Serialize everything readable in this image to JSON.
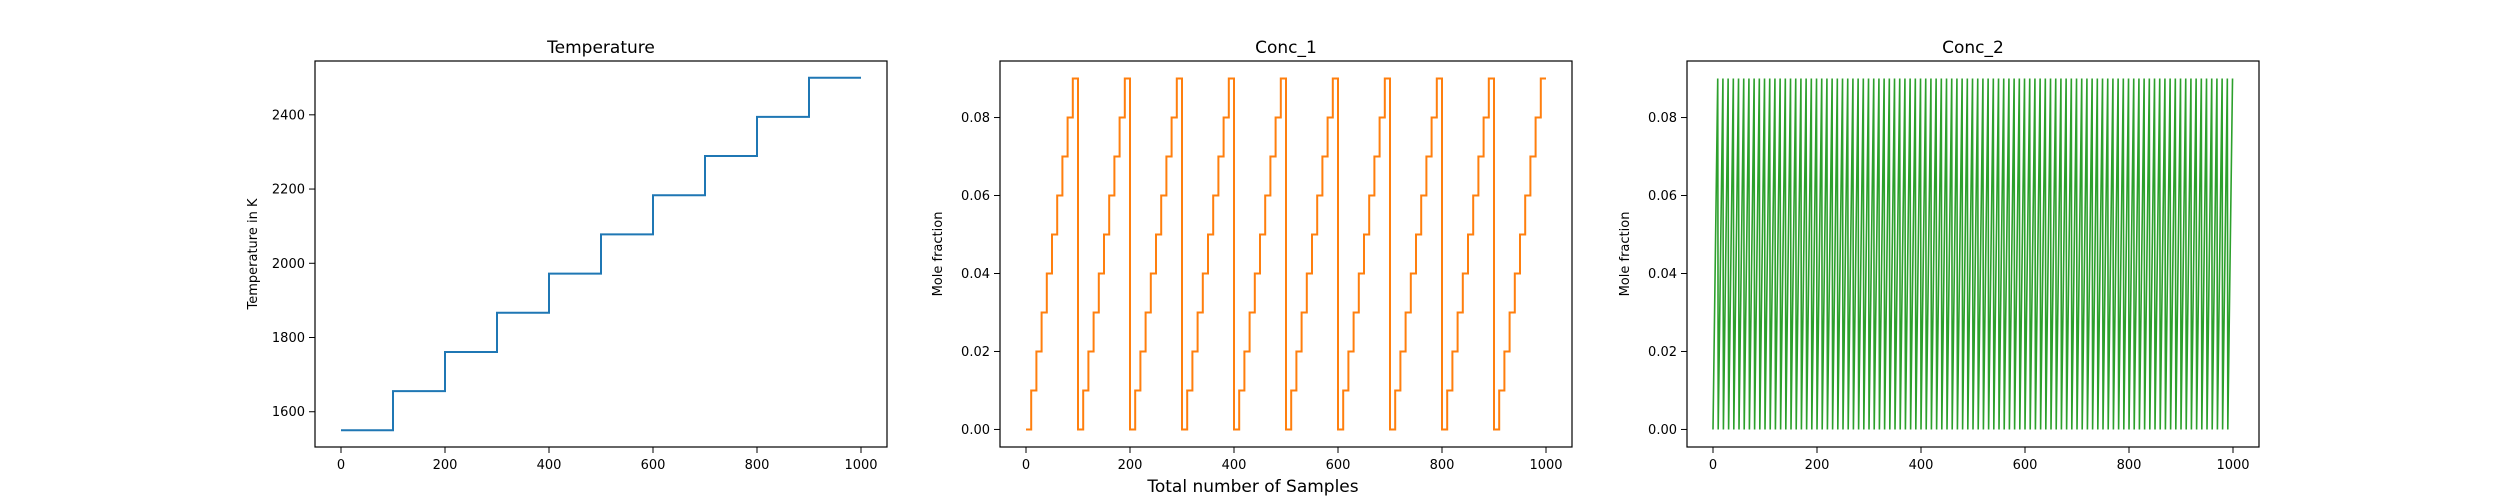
{
  "figure": {
    "xlabel": "Total number of Samples"
  },
  "chart_data": [
    {
      "type": "line",
      "title": "Temperature",
      "xlabel": "",
      "ylabel": "Temperature in K",
      "xlim": [
        -50,
        1050
      ],
      "ylim": [
        1505,
        2545
      ],
      "xticks": [
        0,
        200,
        400,
        600,
        800,
        1000
      ],
      "yticks": [
        1600,
        1800,
        2000,
        2200,
        2400
      ],
      "color": "#1f77b4",
      "step": {
        "x_start": 0,
        "x_end": 1000,
        "period": 100,
        "y_start": 1550,
        "y_step": 105.56
      }
    },
    {
      "type": "line",
      "title": "Conc_1",
      "xlabel": "",
      "ylabel": "Mole fraction",
      "xlim": [
        -50,
        1050
      ],
      "ylim": [
        -0.0045,
        0.0945
      ],
      "xticks": [
        0,
        200,
        400,
        600,
        800,
        1000
      ],
      "yticks": [
        0.0,
        0.02,
        0.04,
        0.06,
        0.08
      ],
      "color": "#ff7f0e",
      "staircase": {
        "x_start": 0,
        "x_end": 1000,
        "period": 100,
        "levels": 10,
        "level_step": 0.01
      }
    },
    {
      "type": "line",
      "title": "Conc_2",
      "xlabel": "",
      "ylabel": "Mole fraction",
      "xlim": [
        -50,
        1050
      ],
      "ylim": [
        -0.0045,
        0.0945
      ],
      "xticks": [
        0,
        200,
        400,
        600,
        800,
        1000
      ],
      "yticks": [
        0.0,
        0.02,
        0.04,
        0.06,
        0.08
      ],
      "color": "#2ca02c",
      "sawtooth": {
        "x_start": 0,
        "x_end": 1000,
        "period": 10,
        "min": 0.0,
        "max": 0.09
      }
    }
  ]
}
